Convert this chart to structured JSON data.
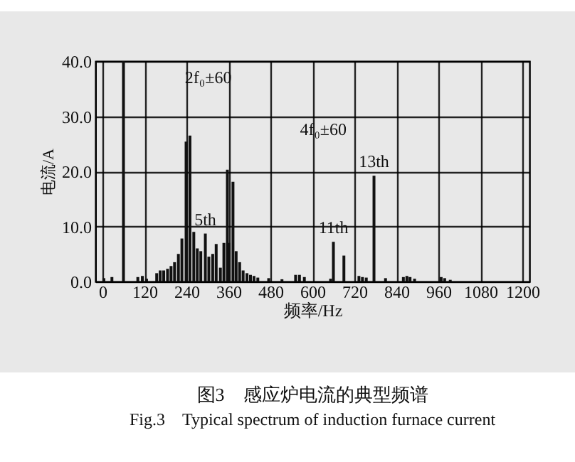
{
  "chart_data": {
    "type": "bar",
    "title": "图3　感应炉电流的典型频谱",
    "subtitle": "Fig.3　Typical spectrum of induction furnace current",
    "xlabel": "频率/Hz",
    "ylabel": "电流/A",
    "x": [
      4,
      27,
      60,
      101,
      114,
      126,
      155,
      165,
      175,
      186,
      196,
      206,
      217,
      227,
      239,
      250,
      261,
      271,
      281,
      294,
      304,
      315,
      325,
      337,
      347,
      357,
      362,
      373,
      382,
      392,
      402,
      413,
      423,
      433,
      444,
      475,
      513,
      552,
      563,
      577,
      652,
      660,
      690,
      733,
      743,
      754,
      776,
      809,
      860,
      870,
      879,
      892,
      968,
      978,
      994
    ],
    "values": [
      0.6,
      0.8,
      40,
      0.8,
      1.0,
      0.5,
      1.5,
      2,
      2,
      2.3,
      2.8,
      3.5,
      5,
      7.8,
      25.4,
      26.5,
      9,
      6,
      5.5,
      8.7,
      4.5,
      5,
      6.8,
      2.5,
      7,
      20.3,
      7,
      18.1,
      5.5,
      3.5,
      2,
      1.5,
      1.2,
      1,
      0.7,
      0.6,
      0.4,
      1.2,
      1.2,
      0.8,
      0.5,
      7.2,
      4.7,
      1,
      0.8,
      0.7,
      19.2,
      0.6,
      0.8,
      1.0,
      0.8,
      0.5,
      0.8,
      0.6,
      0.3
    ],
    "color": "#111111",
    "xlim": [
      0,
      1200
    ],
    "xticks": [
      0,
      120,
      240,
      360,
      480,
      600,
      720,
      840,
      960,
      1080,
      1200
    ],
    "ylim": [
      0,
      40
    ],
    "yticks": [
      {
        "value": 0,
        "label": "0.0"
      },
      {
        "value": 10,
        "label": "10.0"
      },
      {
        "value": 20,
        "label": "20.0"
      },
      {
        "value": 30,
        "label": "30.0"
      },
      {
        "value": 40,
        "label": "40.0"
      }
    ],
    "grid": true,
    "annotations": [
      "2f₀±60",
      "4f₀±60",
      {
        "text": "5th",
        "x": 294,
        "y": 8.7
      },
      {
        "text": "11th",
        "x": 660,
        "y": 7.2
      },
      {
        "text": "13th",
        "x": 776,
        "y": 19.2
      }
    ]
  }
}
